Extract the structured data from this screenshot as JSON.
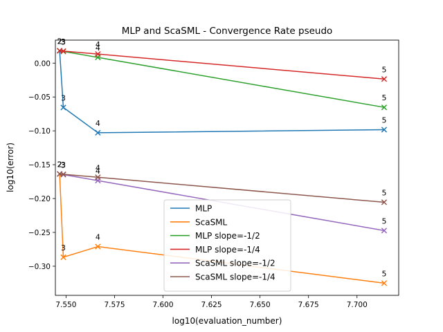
{
  "chart_data": {
    "type": "line",
    "title": "MLP and ScaSML - Convergence Rate pseudo",
    "xlabel": "log10(evaluation_number)",
    "ylabel": "log10(error)",
    "xlim": [
      7.5445,
      7.7215
    ],
    "ylim": [
      -0.343,
      0.034
    ],
    "xticks": [
      7.55,
      7.575,
      7.6,
      7.625,
      7.65,
      7.675,
      7.7
    ],
    "xtick_labels": [
      "7.550",
      "7.575",
      "7.600",
      "7.625",
      "7.650",
      "7.675",
      "7.700"
    ],
    "yticks": [
      0.0,
      -0.05,
      -0.1,
      -0.15,
      -0.2,
      -0.25,
      -0.3
    ],
    "ytick_labels": [
      "0.00",
      "−0.05",
      "−0.10",
      "−0.15",
      "−0.20",
      "−0.25",
      "−0.30"
    ],
    "grid": false,
    "legend_position": "lower-center",
    "marker": "x",
    "series": [
      {
        "name": "MLP",
        "color": "#1f77b4",
        "x": [
          7.5467,
          7.5486,
          7.5664,
          7.714
        ],
        "y": [
          0.0183,
          -0.0655,
          -0.1028,
          -0.0983
        ],
        "point_labels": [
          "2",
          "3",
          "4",
          "5"
        ]
      },
      {
        "name": "ScaSML",
        "color": "#ff7f0e",
        "x": [
          7.5467,
          7.5486,
          7.5664,
          7.714
        ],
        "y": [
          -0.1637,
          -0.2867,
          -0.271,
          -0.325
        ],
        "point_labels": [
          "2",
          "3",
          "4",
          "5"
        ]
      },
      {
        "name": "MLP slope=-1/2",
        "color": "#2ca02c",
        "x": [
          7.5467,
          7.5486,
          7.5664,
          7.714
        ],
        "y": [
          0.0183,
          0.0173,
          0.0085,
          -0.0653
        ],
        "point_labels": [
          "2",
          "3",
          "4",
          "5"
        ]
      },
      {
        "name": "MLP slope=-1/4",
        "color": "#d62728",
        "x": [
          7.5467,
          7.5486,
          7.5664,
          7.714
        ],
        "y": [
          0.0183,
          0.0178,
          0.0134,
          -0.0235
        ],
        "point_labels": [
          "2",
          "3",
          "4",
          "5"
        ]
      },
      {
        "name": "ScaSML slope=-1/2",
        "color": "#9467bd",
        "x": [
          7.5467,
          7.5486,
          7.5664,
          7.714
        ],
        "y": [
          -0.1637,
          -0.1647,
          -0.1735,
          -0.2473
        ],
        "point_labels": [
          "2",
          "3",
          "4",
          "5"
        ]
      },
      {
        "name": "ScaSML slope=-1/4",
        "color": "#8c564b",
        "x": [
          7.5467,
          7.5486,
          7.5664,
          7.714
        ],
        "y": [
          -0.1637,
          -0.1642,
          -0.1686,
          -0.2055
        ],
        "point_labels": [
          "2",
          "3",
          "4",
          "5"
        ]
      }
    ]
  }
}
